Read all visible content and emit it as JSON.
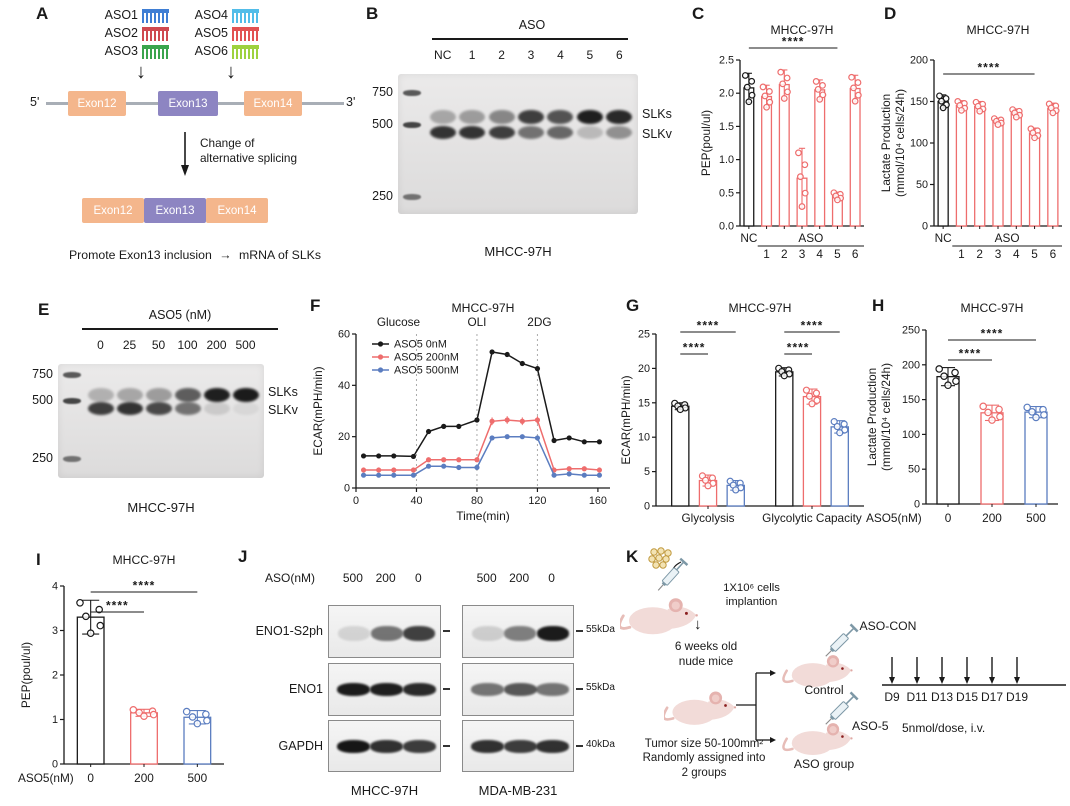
{
  "icons": {
    "arrow_down": "↓",
    "arrow_right": "→"
  },
  "colors": {
    "black": "#1a1a1a",
    "red": "#ee6d6d",
    "blue": "#5b7dc0",
    "exon_orange": "#f4b68c",
    "exon_purple": "#8d85c2",
    "gene_line": "#a8aeb6",
    "aso1": "#3f7ed4",
    "aso2": "#cf4950",
    "aso3": "#3aa54d",
    "aso4": "#52bde9",
    "aso5": "#e25252",
    "aso6": "#9ed23e",
    "mouse_body": "#f2dbd8",
    "mouse_ear": "#e5b3af",
    "mouse_eye": "#8a1f1f",
    "cells_fill": "#f3e3b3",
    "cells_stroke": "#c19a3f"
  },
  "panels": {
    "a": "A",
    "b": "B",
    "c": "C",
    "d": "D",
    "e": "E",
    "f": "F",
    "g": "G",
    "h": "H",
    "i": "I",
    "j": "J",
    "k": "K"
  },
  "panel_a": {
    "asos": [
      {
        "name": "ASO1",
        "color_key": "aso1"
      },
      {
        "name": "ASO2",
        "color_key": "aso2"
      },
      {
        "name": "ASO3",
        "color_key": "aso3"
      },
      {
        "name": "ASO4",
        "color_key": "aso4"
      },
      {
        "name": "ASO5",
        "color_key": "aso5"
      },
      {
        "name": "ASO6",
        "color_key": "aso6"
      }
    ],
    "five_prime": "5'",
    "three_prime": "3'",
    "pre_exons": [
      {
        "label": "Exon12",
        "color_key": "exon_orange"
      },
      {
        "label": "Exon13",
        "color_key": "exon_purple"
      },
      {
        "label": "Exon14",
        "color_key": "exon_orange"
      }
    ],
    "change_line1": "Change of",
    "change_line2": "alternative splicing",
    "post_exons": [
      {
        "label": "Exon12",
        "color_key": "exon_orange"
      },
      {
        "label": "Exon13",
        "color_key": "exon_purple"
      },
      {
        "label": "Exon14",
        "color_key": "exon_orange"
      }
    ],
    "promote_text": "Promote Exon13 inclusion",
    "result_text": "mRNA of SLKs"
  },
  "panel_b": {
    "group_label": "ASO",
    "lanes": [
      "NC",
      "1",
      "2",
      "3",
      "4",
      "5",
      "6"
    ],
    "ladder": [
      "750",
      "500",
      "250"
    ],
    "band_labels": [
      "SLKs",
      "SLKv"
    ],
    "caption": "MHCC-97H",
    "slks": [
      0.3,
      0.35,
      0.45,
      0.8,
      0.7,
      0.95,
      0.9
    ],
    "slkv": [
      0.85,
      0.85,
      0.8,
      0.55,
      0.6,
      0.2,
      0.4
    ]
  },
  "panel_e": {
    "group_label": "ASO5 (nM)",
    "lanes": [
      "0",
      "25",
      "50",
      "100",
      "200",
      "500"
    ],
    "ladder": [
      "750",
      "500",
      "250"
    ],
    "band_labels": [
      "SLKs",
      "SLKv"
    ],
    "caption": "MHCC-97H",
    "slks": [
      0.25,
      0.3,
      0.35,
      0.65,
      0.95,
      0.97
    ],
    "slkv": [
      0.8,
      0.85,
      0.75,
      0.55,
      0.12,
      0.06
    ]
  },
  "panel_j": {
    "prefix": "ASO(nM)",
    "lane_labels": [
      "500",
      "200",
      "0"
    ],
    "rows": [
      "ENO1-S2ph",
      "ENO1",
      "GAPDH"
    ],
    "markers": [
      "55kDa",
      "55kDa",
      "40kDa"
    ],
    "blots": [
      {
        "caption": "MHCC-97H",
        "bands": [
          [
            0.12,
            0.55,
            0.78
          ],
          [
            0.95,
            0.93,
            0.88
          ],
          [
            0.97,
            0.85,
            0.8
          ]
        ]
      },
      {
        "caption": "MDA-MB-231",
        "bands": [
          [
            0.15,
            0.5,
            0.95
          ],
          [
            0.55,
            0.68,
            0.55
          ],
          [
            0.85,
            0.8,
            0.85
          ]
        ]
      }
    ]
  },
  "panel_k": {
    "cells_line1": "1X10⁶ cells",
    "cells_line2": "implantion",
    "weeks_line1": "6 weeks old",
    "weeks_line2": "nude mice",
    "tumor_line1": "Tumor size 50-100mm²",
    "tumor_line2": "Randomly assigned into",
    "tumor_line3": "2 groups",
    "aso_con": "ASO-CON",
    "control": "Control",
    "aso5": "ASO-5",
    "aso_group": "ASO group",
    "days": [
      "D9",
      "D11",
      "D13",
      "D15",
      "D17",
      "D19"
    ],
    "dose": "5nmol/dose, i.v."
  },
  "chart_data": [
    {
      "id": "C",
      "type": "bar",
      "title": "MHCC-97H",
      "ylabel": [
        "PEP(poul/ul)"
      ],
      "ylim": [
        0,
        2.5
      ],
      "yticks": [
        0,
        0.5,
        1,
        1.5,
        2,
        2.5
      ],
      "ytick_labels": [
        "0.0",
        "0.5",
        "1.0",
        "1.5",
        "2.0",
        "2.5"
      ],
      "categories": [
        "NC",
        "1",
        "2",
        "3",
        "4",
        "5",
        "6"
      ],
      "values": [
        2.08,
        1.95,
        2.13,
        0.72,
        2.05,
        0.45,
        2.07
      ],
      "errors": [
        0.22,
        0.17,
        0.22,
        0.45,
        0.15,
        0.06,
        0.2
      ],
      "bar_colors": [
        "black",
        "red",
        "red",
        "red",
        "red",
        "red",
        "red"
      ],
      "xaxis": {
        "first": "NC",
        "group": "ASO",
        "group_items": [
          "1",
          "2",
          "3",
          "4",
          "5",
          "6"
        ]
      },
      "significance": [
        {
          "from": 0,
          "to": 5,
          "label": "****",
          "level": 0
        }
      ]
    },
    {
      "id": "D",
      "type": "bar",
      "title": "MHCC-97H",
      "ylabel": [
        "Lactate Production",
        "(mmol/10⁴ cells/24h)"
      ],
      "ylim": [
        0,
        200
      ],
      "yticks": [
        0,
        50,
        100,
        150,
        200
      ],
      "ytick_labels": [
        "0",
        "50",
        "100",
        "150",
        "200"
      ],
      "categories": [
        "NC",
        "1",
        "2",
        "3",
        "4",
        "5",
        "6"
      ],
      "values": [
        150,
        145,
        144,
        126,
        136,
        112,
        142
      ],
      "errors": [
        8,
        6,
        6,
        4,
        5,
        6,
        6
      ],
      "bar_colors": [
        "black",
        "red",
        "red",
        "red",
        "red",
        "red",
        "red"
      ],
      "xaxis": {
        "first": "NC",
        "group": "ASO",
        "group_items": [
          "1",
          "2",
          "3",
          "4",
          "5",
          "6"
        ]
      },
      "significance": [
        {
          "from": 0,
          "to": 5,
          "label": "****",
          "level": 0
        }
      ]
    },
    {
      "id": "F",
      "type": "line",
      "title": "MHCC-97H",
      "xlabel": "Time(min)",
      "ylabel": [
        "ECAR(mPH/min)"
      ],
      "xlim": [
        0,
        168
      ],
      "xticks": [
        0,
        40,
        80,
        120,
        160
      ],
      "ylim": [
        0,
        60
      ],
      "yticks": [
        0,
        20,
        40,
        60
      ],
      "ytick_labels": [
        "0",
        "20",
        "40",
        "60"
      ],
      "vlines": [
        {
          "x": 40,
          "label": "Glucose",
          "dx": -18
        },
        {
          "x": 80,
          "label": "OLI",
          "dx": 0
        },
        {
          "x": 120,
          "label": "2DG",
          "dx": 2
        }
      ],
      "x": [
        5,
        15,
        25,
        38,
        48,
        58,
        68,
        80,
        90,
        100,
        110,
        120,
        131,
        141,
        151,
        161
      ],
      "series": [
        {
          "name": "ASO5 0nM",
          "color": "black",
          "values": [
            12.5,
            12.5,
            12.5,
            12.3,
            22,
            24,
            24,
            26.5,
            53,
            52,
            48.5,
            46.5,
            18.5,
            19.5,
            18,
            18
          ]
        },
        {
          "name": "ASO5 200nM",
          "color": "red",
          "values": [
            7,
            7,
            7,
            7,
            11,
            11,
            11,
            11,
            26,
            26.5,
            26,
            26.5,
            7,
            7.5,
            7.5,
            7
          ],
          "error_idx": [
            8,
            9,
            10,
            11
          ],
          "error": 1.5
        },
        {
          "name": "ASO5 500nM",
          "color": "blue",
          "values": [
            5,
            5,
            5,
            5,
            8.5,
            8.5,
            8,
            8,
            19.5,
            20,
            20,
            19.5,
            5,
            5.5,
            5,
            5
          ]
        }
      ],
      "legend_position": "top-left"
    },
    {
      "id": "G",
      "type": "grouped_bar",
      "title": "MHCC-97H",
      "ylabel": [
        "ECAR(mPH/min)"
      ],
      "ylim": [
        0,
        25
      ],
      "yticks": [
        0,
        5,
        10,
        15,
        20,
        25
      ],
      "ytick_labels": [
        "0",
        "5",
        "10",
        "15",
        "20",
        "25"
      ],
      "categories": [
        "Glycolysis",
        "Glycolytic Capacity"
      ],
      "series": [
        {
          "name": "ASO5 0nM",
          "color": "black",
          "values": [
            14.5,
            19.5
          ],
          "errors": [
            0.5,
            0.6
          ]
        },
        {
          "name": "ASO5 200nM",
          "color": "red",
          "values": [
            3.7,
            15.9
          ],
          "errors": [
            0.8,
            1.1
          ]
        },
        {
          "name": "ASO5 500nM",
          "color": "blue",
          "values": [
            3.0,
            11.5
          ],
          "errors": [
            0.7,
            0.9
          ]
        }
      ],
      "significance": [
        {
          "group": 0,
          "s_from": 0,
          "s_to": 1,
          "label": "****",
          "level": 0
        },
        {
          "group": 0,
          "s_from": 0,
          "s_to": 2,
          "label": "****",
          "level": 1
        },
        {
          "group": 1,
          "s_from": 0,
          "s_to": 1,
          "label": "****",
          "level": 0
        },
        {
          "group": 1,
          "s_from": 0,
          "s_to": 2,
          "label": "****",
          "level": 1
        }
      ]
    },
    {
      "id": "H",
      "type": "bar",
      "title": "MHCC-97H",
      "ylabel": [
        "Lactate Production",
        "(mmol/10⁴ cells/24h)"
      ],
      "ylim": [
        0,
        250
      ],
      "yticks": [
        0,
        50,
        100,
        150,
        200,
        250
      ],
      "ytick_labels": [
        "0",
        "50",
        "100",
        "150",
        "200",
        "250"
      ],
      "categories": [
        "0",
        "200",
        "500"
      ],
      "values": [
        183,
        131,
        132
      ],
      "errors": [
        13,
        11,
        8
      ],
      "bar_colors": [
        "black",
        "red",
        "blue"
      ],
      "xaxis": {
        "prefix": "ASO5(nM)"
      },
      "significance": [
        {
          "from": 0,
          "to": 1,
          "label": "****",
          "level": 0
        },
        {
          "from": 0,
          "to": 2,
          "label": "****",
          "level": 1
        }
      ]
    },
    {
      "id": "I",
      "type": "bar",
      "title": "MHCC-97H",
      "ylabel": [
        "PEP(poul/ul)"
      ],
      "ylim": [
        0,
        4
      ],
      "yticks": [
        0,
        1,
        2,
        3,
        4
      ],
      "ytick_labels": [
        "0",
        "1",
        "2",
        "3",
        "4"
      ],
      "categories": [
        "0",
        "200",
        "500"
      ],
      "values": [
        3.3,
        1.15,
        1.05
      ],
      "errors": [
        0.38,
        0.08,
        0.15
      ],
      "bar_colors": [
        "black",
        "red",
        "blue"
      ],
      "xaxis": {
        "prefix": "ASO5(nM)"
      },
      "significance": [
        {
          "from": 0,
          "to": 1,
          "label": "****",
          "level": 0
        },
        {
          "from": 0,
          "to": 2,
          "label": "****",
          "level": 1
        }
      ]
    }
  ]
}
